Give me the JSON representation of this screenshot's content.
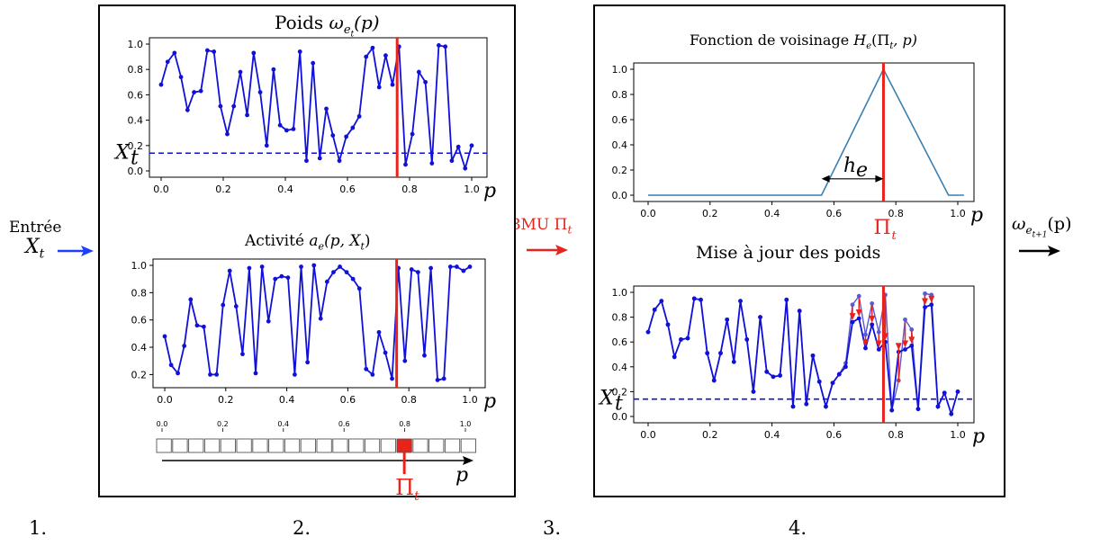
{
  "steps": [
    "1.",
    "2.",
    "3.",
    "4."
  ],
  "input": {
    "label": "Entrée",
    "var": "X",
    "sub": "t"
  },
  "bmu": {
    "label": "BMU Π",
    "sub": "t"
  },
  "output": {
    "label": "ω",
    "sub": "e",
    "subsub": "t+1",
    "tail": "(p)"
  },
  "colors": {
    "series": "#1010d8",
    "bmu": "#e8231b",
    "neigh": "#3b7fb0",
    "axes": "#000000",
    "updated": "#5a5ad8"
  },
  "chart_data": [
    {
      "id": "weights",
      "type": "line",
      "title": "Poids ω_{e_t}(p)",
      "title_text": "Poids ",
      "title_math": "ω",
      "title_sub": "e",
      "title_subsub": "t",
      "title_tail": "(p)",
      "xlabel": "p",
      "threshold_label": "X",
      "threshold_sub": "t",
      "xlim": [
        0,
        1
      ],
      "ylim": [
        0,
        1
      ],
      "xticks": [
        "0.0",
        "0.2",
        "0.4",
        "0.6",
        "0.8",
        "1.0"
      ],
      "yticks": [
        "0.0",
        "0.2",
        "0.4",
        "0.6",
        "0.8",
        "1.0"
      ],
      "threshold": 0.14,
      "bmu_x": 0.76,
      "x": [
        0.0,
        0.021,
        0.043,
        0.064,
        0.085,
        0.106,
        0.128,
        0.149,
        0.17,
        0.191,
        0.213,
        0.234,
        0.255,
        0.277,
        0.298,
        0.319,
        0.34,
        0.362,
        0.383,
        0.404,
        0.426,
        0.447,
        0.468,
        0.489,
        0.511,
        0.532,
        0.553,
        0.574,
        0.596,
        0.617,
        0.638,
        0.66,
        0.681,
        0.702,
        0.723,
        0.745,
        0.766,
        0.787,
        0.809,
        0.83,
        0.851,
        0.872,
        0.894,
        0.915,
        0.936,
        0.957,
        0.979,
        1.0
      ],
      "values": [
        0.68,
        0.86,
        0.93,
        0.74,
        0.48,
        0.62,
        0.63,
        0.95,
        0.94,
        0.51,
        0.29,
        0.51,
        0.78,
        0.44,
        0.93,
        0.62,
        0.2,
        0.8,
        0.36,
        0.32,
        0.33,
        0.94,
        0.08,
        0.85,
        0.1,
        0.49,
        0.28,
        0.08,
        0.27,
        0.34,
        0.43,
        0.9,
        0.97,
        0.66,
        0.91,
        0.68,
        0.98,
        0.05,
        0.29,
        0.78,
        0.7,
        0.06,
        0.99,
        0.98,
        0.08,
        0.19,
        0.02,
        0.2
      ]
    },
    {
      "id": "activity",
      "type": "line",
      "title": "Activité a_e(p, X_t)",
      "title_text": "Activité ",
      "title_math": "a",
      "title_sub": "e",
      "title_tail": "(p, X",
      "title_tail_sub": "t",
      "title_end": ")",
      "xlabel": "p",
      "xlim": [
        0,
        1
      ],
      "ylim": [
        0.15,
        1
      ],
      "xticks": [
        "0.0",
        "0.2",
        "0.4",
        "0.6",
        "0.8",
        "1.0"
      ],
      "yticks": [
        "0.2",
        "0.4",
        "0.6",
        "0.8",
        "1.0"
      ],
      "bmu_x": 0.76,
      "x": [
        0.0,
        0.021,
        0.043,
        0.064,
        0.085,
        0.106,
        0.128,
        0.149,
        0.17,
        0.191,
        0.213,
        0.234,
        0.255,
        0.277,
        0.298,
        0.319,
        0.34,
        0.362,
        0.383,
        0.404,
        0.426,
        0.447,
        0.468,
        0.489,
        0.511,
        0.532,
        0.553,
        0.574,
        0.596,
        0.617,
        0.638,
        0.66,
        0.681,
        0.702,
        0.723,
        0.745,
        0.766,
        0.787,
        0.809,
        0.83,
        0.851,
        0.872,
        0.894,
        0.915,
        0.936,
        0.957,
        0.979,
        1.0
      ],
      "values": [
        0.48,
        0.27,
        0.21,
        0.41,
        0.75,
        0.56,
        0.55,
        0.2,
        0.2,
        0.71,
        0.96,
        0.7,
        0.35,
        0.98,
        0.21,
        0.99,
        0.59,
        0.9,
        0.92,
        0.91,
        0.2,
        0.99,
        0.29,
        1.0,
        0.61,
        0.88,
        0.95,
        0.99,
        0.95,
        0.9,
        0.83,
        0.24,
        0.2,
        0.51,
        0.36,
        0.17,
        0.98,
        0.3,
        0.97,
        0.95,
        0.34,
        0.98,
        0.16,
        0.17,
        0.99,
        0.99,
        0.96,
        0.99
      ],
      "grid_ticks": [
        "0.0",
        "0.2",
        "0.4",
        "0.6",
        "0.8",
        "1.0"
      ],
      "grid_cells": 20,
      "grid_bmu_index": 15,
      "grid_xlabel": "p",
      "grid_bmu_label": "Π",
      "grid_bmu_sub": "t"
    },
    {
      "id": "neighborhood",
      "type": "line",
      "title": "Fonction de voisinage H_e(Π_t, p)",
      "title_text": "Fonction de voisinage ",
      "title_math": "H",
      "title_sub": "e",
      "title_tail": "(Π",
      "title_tail_sub": "t",
      "title_end": ", p)",
      "xlabel": "p",
      "xlim": [
        0,
        1
      ],
      "ylim": [
        0,
        1
      ],
      "xticks": [
        "0.0",
        "0.2",
        "0.4",
        "0.6",
        "0.8",
        "1.0"
      ],
      "yticks": [
        "0.0",
        "0.2",
        "0.4",
        "0.6",
        "0.8",
        "1.0"
      ],
      "bmu_x": 0.76,
      "bmu_label": "Π",
      "bmu_sub": "t",
      "width_label": "h",
      "width_sub": "e",
      "x": [
        0.0,
        0.56,
        0.76,
        0.97,
        1.02
      ],
      "values": [
        0.0,
        0.0,
        1.0,
        0.0,
        0.0
      ]
    },
    {
      "id": "update",
      "type": "line",
      "title": "Mise à jour des poids",
      "xlabel": "p",
      "threshold_label": "X",
      "threshold_sub": "t",
      "xlim": [
        0,
        1
      ],
      "ylim": [
        0,
        1
      ],
      "xticks": [
        "0.0",
        "0.2",
        "0.4",
        "0.6",
        "0.8",
        "1.0"
      ],
      "yticks": [
        "0.0",
        "0.2",
        "0.4",
        "0.6",
        "0.8",
        "1.0"
      ],
      "threshold": 0.14,
      "bmu_x": 0.76,
      "x": [
        0.0,
        0.021,
        0.043,
        0.064,
        0.085,
        0.106,
        0.128,
        0.149,
        0.17,
        0.191,
        0.213,
        0.234,
        0.255,
        0.277,
        0.298,
        0.319,
        0.34,
        0.362,
        0.383,
        0.404,
        0.426,
        0.447,
        0.468,
        0.489,
        0.511,
        0.532,
        0.553,
        0.574,
        0.596,
        0.617,
        0.638,
        0.66,
        0.681,
        0.702,
        0.723,
        0.745,
        0.766,
        0.787,
        0.809,
        0.83,
        0.851,
        0.872,
        0.894,
        0.915,
        0.936,
        0.957,
        0.979,
        1.0
      ],
      "series": [
        {
          "name": "",
          "values": [
            0.68,
            0.86,
            0.93,
            0.74,
            0.48,
            0.62,
            0.63,
            0.95,
            0.94,
            0.51,
            0.29,
            0.51,
            0.78,
            0.44,
            0.93,
            0.62,
            0.2,
            0.8,
            0.36,
            0.32,
            0.33,
            0.94,
            0.08,
            0.85,
            0.1,
            0.49,
            0.28,
            0.08,
            0.27,
            0.34,
            0.43,
            0.9,
            0.97,
            0.66,
            0.91,
            0.68,
            0.98,
            0.05,
            0.29,
            0.78,
            0.7,
            0.06,
            0.99,
            0.98,
            0.08,
            0.19,
            0.02,
            0.2
          ]
        },
        {
          "name": "",
          "values": [
            0.68,
            0.86,
            0.93,
            0.74,
            0.48,
            0.62,
            0.63,
            0.95,
            0.94,
            0.51,
            0.29,
            0.51,
            0.78,
            0.44,
            0.93,
            0.62,
            0.2,
            0.8,
            0.36,
            0.32,
            0.33,
            0.94,
            0.08,
            0.85,
            0.1,
            0.49,
            0.28,
            0.08,
            0.27,
            0.34,
            0.4,
            0.76,
            0.79,
            0.55,
            0.74,
            0.54,
            0.6,
            0.05,
            0.52,
            0.54,
            0.57,
            0.06,
            0.88,
            0.9,
            0.08,
            0.19,
            0.02,
            0.2
          ]
        }
      ]
    }
  ]
}
